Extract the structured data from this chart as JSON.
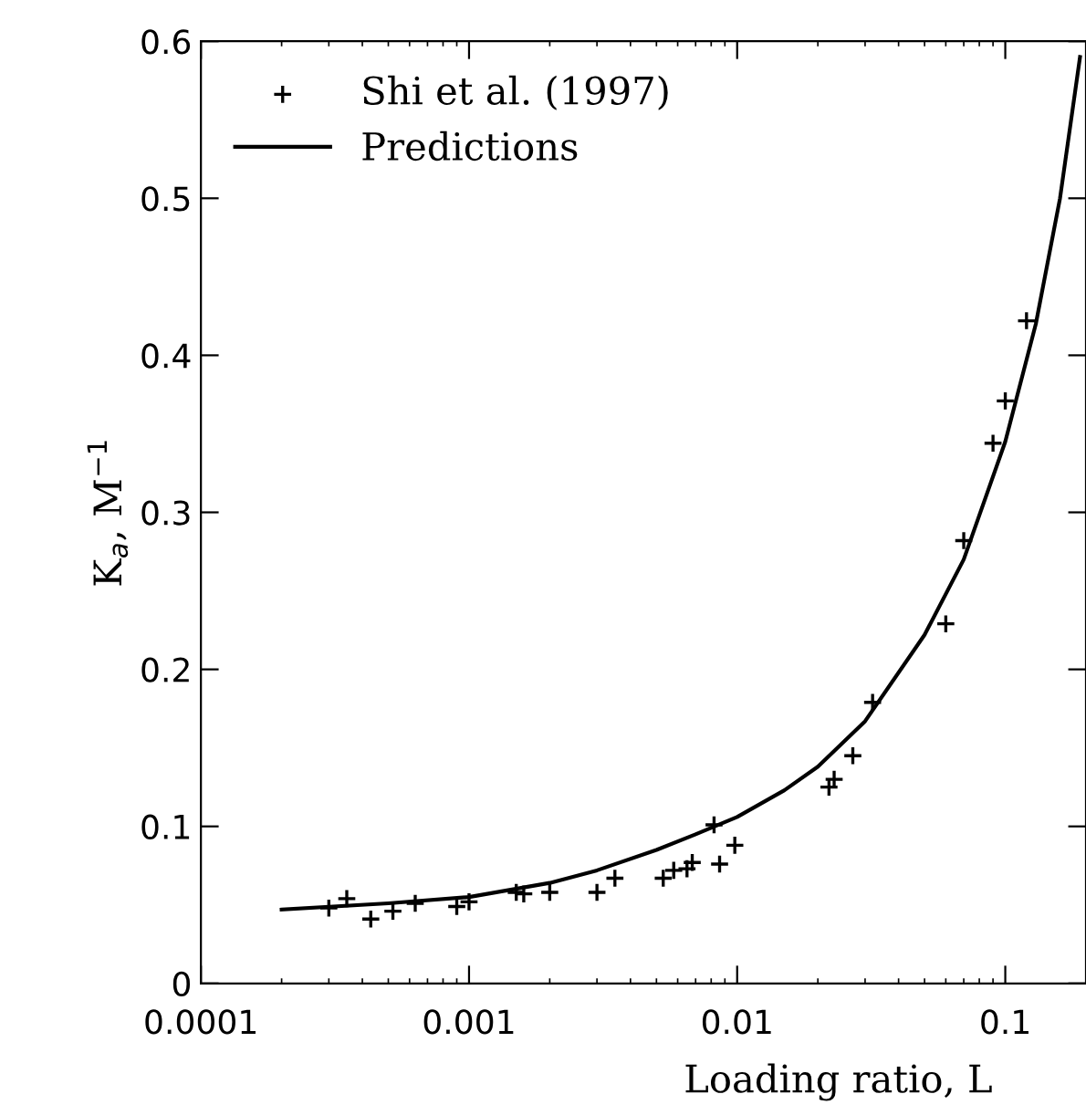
{
  "chart_data": {
    "type": "scatter",
    "xlabel": "Loading ratio, L",
    "ylabel": "K$_{a}$, M$^{−1}$",
    "log": "x",
    "xlim": [
      0.0001,
      0.2
    ],
    "xticks": [
      0.0001,
      0.001,
      0.01,
      0.1
    ],
    "ylim": [
      0,
      0.6
    ],
    "yticks": [
      0,
      0.1,
      0.2,
      0.3,
      0.4,
      0.5,
      0.6
    ],
    "grid": false,
    "legend": "top left",
    "series": [
      {
        "name": "Shi et al. (1997)",
        "marker": "cross",
        "color": "#000000",
        "x": [
          0.0003,
          0.00035,
          0.00043,
          0.00052,
          0.00063,
          0.0009,
          0.001,
          0.0015,
          0.0016,
          0.002,
          0.003,
          0.0035,
          0.0053,
          0.0058,
          0.0065,
          0.0068,
          0.0082,
          0.0086,
          0.0098,
          0.022,
          0.023,
          0.027,
          0.032,
          0.06,
          0.07,
          0.09,
          0.1,
          0.12
        ],
        "values": [
          0.048,
          0.054,
          0.041,
          0.046,
          0.051,
          0.049,
          0.052,
          0.058,
          0.057,
          0.058,
          0.058,
          0.067,
          0.067,
          0.072,
          0.073,
          0.077,
          0.101,
          0.076,
          0.088,
          0.125,
          0.13,
          0.145,
          0.179,
          0.229,
          0.282,
          0.344,
          0.371,
          0.422
        ]
      },
      {
        "name": "Predictions",
        "type": "line",
        "line_style": "solid",
        "color": "#000000",
        "x": [
          0.0002,
          0.0005,
          0.001,
          0.002,
          0.003,
          0.005,
          0.007,
          0.01,
          0.015,
          0.02,
          0.03,
          0.05,
          0.07,
          0.1,
          0.13,
          0.16,
          0.19
        ],
        "values": [
          0.047,
          0.051,
          0.055,
          0.064,
          0.072,
          0.085,
          0.095,
          0.106,
          0.123,
          0.138,
          0.167,
          0.222,
          0.27,
          0.345,
          0.42,
          0.5,
          0.59
        ]
      }
    ]
  }
}
